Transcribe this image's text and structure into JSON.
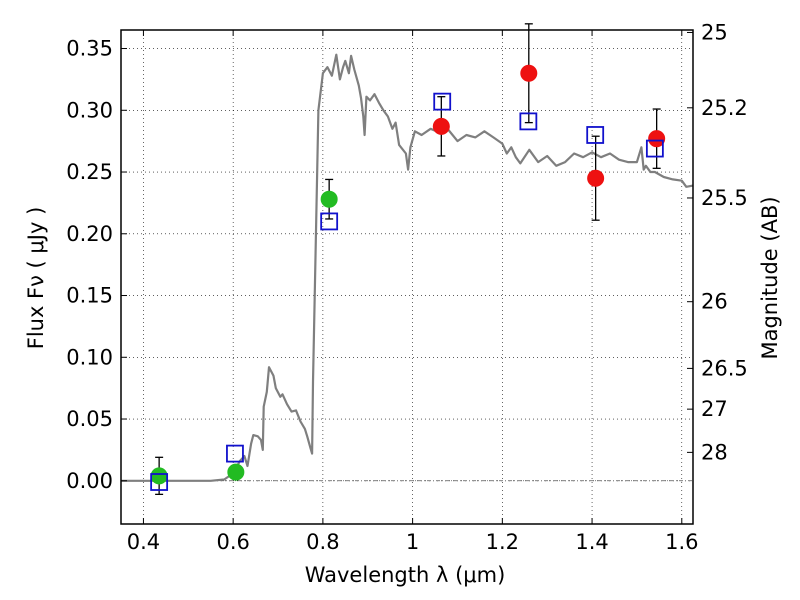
{
  "chart_data": {
    "type": "scatter",
    "title": "",
    "xlabel": "Wavelength  λ (μm)",
    "ylabel": "Flux  Fν  ( μJy )",
    "y2label": "Magnitude (AB)",
    "xlim": [
      0.35,
      1.625
    ],
    "ylim": [
      -0.035,
      0.365
    ],
    "grid": true,
    "x_ticks": [
      {
        "value": 0.4,
        "label": "0.4"
      },
      {
        "value": 0.6,
        "label": "0.6"
      },
      {
        "value": 0.8,
        "label": "0.8"
      },
      {
        "value": 1.0,
        "label": "1"
      },
      {
        "value": 1.2,
        "label": "1.2"
      },
      {
        "value": 1.4,
        "label": "1.4"
      },
      {
        "value": 1.6,
        "label": "1.6"
      }
    ],
    "y_ticks": [
      {
        "value": 0.0,
        "label": "0.00"
      },
      {
        "value": 0.05,
        "label": "0.05"
      },
      {
        "value": 0.1,
        "label": "0.10"
      },
      {
        "value": 0.15,
        "label": "0.15"
      },
      {
        "value": 0.2,
        "label": "0.20"
      },
      {
        "value": 0.25,
        "label": "0.25"
      },
      {
        "value": 0.3,
        "label": "0.30"
      },
      {
        "value": 0.35,
        "label": "0.35"
      }
    ],
    "y2_ticks": [
      {
        "flux": 0.363,
        "label": "25"
      },
      {
        "flux": 0.302,
        "label": "25.2"
      },
      {
        "flux": 0.229,
        "label": "25.5"
      },
      {
        "flux": 0.145,
        "label": "26"
      },
      {
        "flux": 0.091,
        "label": "26.5"
      },
      {
        "flux": 0.058,
        "label": "27"
      },
      {
        "flux": 0.023,
        "label": "28"
      }
    ],
    "series": [
      {
        "kind": "line",
        "color": "#7f7f7f",
        "points": [
          [
            0.35,
            0.0
          ],
          [
            0.4,
            0.0
          ],
          [
            0.45,
            0.0
          ],
          [
            0.5,
            0.0
          ],
          [
            0.55,
            0.0
          ],
          [
            0.58,
            0.001
          ],
          [
            0.6,
            0.006
          ],
          [
            0.615,
            0.016
          ],
          [
            0.625,
            0.02
          ],
          [
            0.632,
            0.012
          ],
          [
            0.64,
            0.03
          ],
          [
            0.645,
            0.037
          ],
          [
            0.655,
            0.036
          ],
          [
            0.662,
            0.033
          ],
          [
            0.666,
            0.025
          ],
          [
            0.668,
            0.06
          ],
          [
            0.675,
            0.072
          ],
          [
            0.68,
            0.092
          ],
          [
            0.69,
            0.085
          ],
          [
            0.695,
            0.075
          ],
          [
            0.705,
            0.068
          ],
          [
            0.71,
            0.07
          ],
          [
            0.72,
            0.062
          ],
          [
            0.73,
            0.056
          ],
          [
            0.74,
            0.057
          ],
          [
            0.75,
            0.048
          ],
          [
            0.76,
            0.042
          ],
          [
            0.765,
            0.036
          ],
          [
            0.772,
            0.027
          ],
          [
            0.776,
            0.022
          ],
          [
            0.778,
            0.08
          ],
          [
            0.785,
            0.21
          ],
          [
            0.79,
            0.3
          ],
          [
            0.8,
            0.33
          ],
          [
            0.81,
            0.335
          ],
          [
            0.82,
            0.328
          ],
          [
            0.83,
            0.345
          ],
          [
            0.838,
            0.325
          ],
          [
            0.845,
            0.335
          ],
          [
            0.85,
            0.34
          ],
          [
            0.858,
            0.33
          ],
          [
            0.863,
            0.344
          ],
          [
            0.87,
            0.333
          ],
          [
            0.88,
            0.32
          ],
          [
            0.885,
            0.31
          ],
          [
            0.89,
            0.295
          ],
          [
            0.893,
            0.28
          ],
          [
            0.897,
            0.311
          ],
          [
            0.905,
            0.308
          ],
          [
            0.915,
            0.313
          ],
          [
            0.925,
            0.306
          ],
          [
            0.935,
            0.3
          ],
          [
            0.945,
            0.295
          ],
          [
            0.955,
            0.285
          ],
          [
            0.962,
            0.29
          ],
          [
            0.97,
            0.272
          ],
          [
            0.985,
            0.265
          ],
          [
            0.99,
            0.252
          ],
          [
            0.995,
            0.27
          ],
          [
            1.005,
            0.283
          ],
          [
            1.02,
            0.28
          ],
          [
            1.04,
            0.285
          ],
          [
            1.06,
            0.282
          ],
          [
            1.08,
            0.284
          ],
          [
            1.1,
            0.275
          ],
          [
            1.12,
            0.28
          ],
          [
            1.14,
            0.278
          ],
          [
            1.16,
            0.283
          ],
          [
            1.18,
            0.278
          ],
          [
            1.2,
            0.273
          ],
          [
            1.21,
            0.265
          ],
          [
            1.22,
            0.27
          ],
          [
            1.23,
            0.262
          ],
          [
            1.24,
            0.257
          ],
          [
            1.26,
            0.268
          ],
          [
            1.28,
            0.258
          ],
          [
            1.3,
            0.263
          ],
          [
            1.32,
            0.255
          ],
          [
            1.34,
            0.258
          ],
          [
            1.36,
            0.265
          ],
          [
            1.38,
            0.262
          ],
          [
            1.4,
            0.266
          ],
          [
            1.42,
            0.262
          ],
          [
            1.44,
            0.265
          ],
          [
            1.46,
            0.26
          ],
          [
            1.48,
            0.258
          ],
          [
            1.5,
            0.258
          ],
          [
            1.51,
            0.27
          ],
          [
            1.515,
            0.252
          ],
          [
            1.52,
            0.255
          ],
          [
            1.53,
            0.25
          ],
          [
            1.54,
            0.25
          ],
          [
            1.56,
            0.246
          ],
          [
            1.58,
            0.244
          ],
          [
            1.6,
            0.243
          ],
          [
            1.61,
            0.238
          ],
          [
            1.625,
            0.239
          ]
        ]
      },
      {
        "kind": "marker-circle",
        "color": "#22bb22",
        "points": [
          {
            "x": 0.435,
            "y": 0.004,
            "err": 0.015
          },
          {
            "x": 0.606,
            "y": 0.007,
            "err": 0.0
          },
          {
            "x": 0.814,
            "y": 0.228,
            "err": 0.016
          }
        ]
      },
      {
        "kind": "marker-circle",
        "color": "#ee1111",
        "points": [
          {
            "x": 1.064,
            "y": 0.287,
            "err": 0.024
          },
          {
            "x": 1.259,
            "y": 0.33,
            "err": 0.04
          },
          {
            "x": 1.408,
            "y": 0.245,
            "err": 0.034
          },
          {
            "x": 1.544,
            "y": 0.277,
            "err": 0.024
          }
        ]
      },
      {
        "kind": "marker-square",
        "color": "#1111cc",
        "points": [
          {
            "x": 0.435,
            "y": -0.001
          },
          {
            "x": 0.604,
            "y": 0.022
          },
          {
            "x": 0.814,
            "y": 0.21
          },
          {
            "x": 1.066,
            "y": 0.307
          },
          {
            "x": 1.258,
            "y": 0.291
          },
          {
            "x": 1.407,
            "y": 0.28
          },
          {
            "x": 1.54,
            "y": 0.269
          }
        ]
      }
    ]
  }
}
